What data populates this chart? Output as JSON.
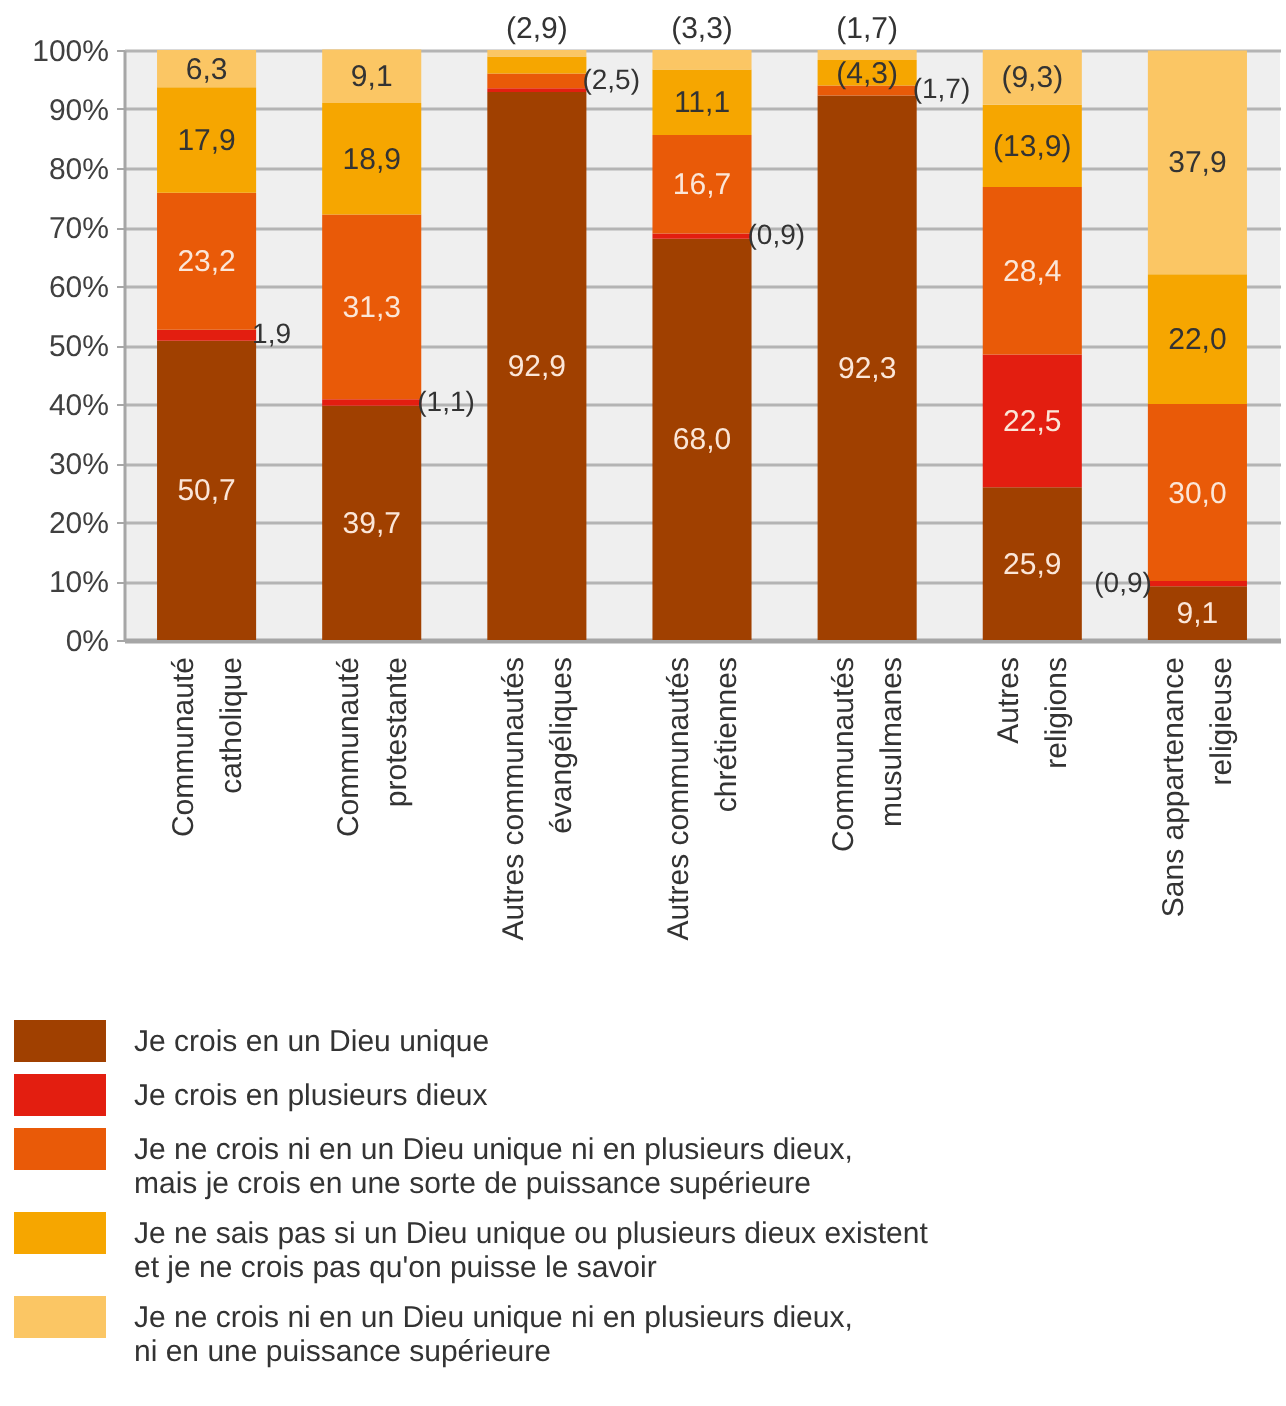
{
  "chart_data": {
    "type": "bar",
    "stacked": true,
    "categories": [
      "Communauté catholique",
      "Communauté protestante",
      "Autres communautés évangéliques",
      "Autres communautés chrétiennes",
      "Communautés musulmanes",
      "Autres religions",
      "Sans appartenance religieuse"
    ],
    "series": [
      {
        "name": "Je crois en un Dieu unique",
        "color": "#a04000",
        "values": [
          50.7,
          39.7,
          92.9,
          68.0,
          92.3,
          25.9,
          9.1
        ],
        "value_labels": [
          "50,7",
          "39,7",
          "92,9",
          "68,0",
          "92,3",
          "25,9",
          "9,1"
        ]
      },
      {
        "name": "Je crois en plusieurs dieux",
        "color": "#e31e10",
        "values": [
          1.9,
          1.1,
          0.6,
          0.9,
          null,
          22.5,
          0.9
        ],
        "value_labels": [
          "1,9",
          "(1,1)",
          null,
          "(0,9)",
          null,
          "22,5",
          "(0,9)"
        ]
      },
      {
        "name": "Je ne crois ni en un Dieu unique ni en plusieurs dieux,\nmais je crois en une sorte de puissance supérieure",
        "color": "#e95a08",
        "values": [
          23.2,
          31.3,
          2.5,
          16.7,
          1.7,
          28.4,
          30.0
        ],
        "value_labels": [
          "23,2",
          "31,3",
          "(2,5)",
          "16,7",
          "(1,7)",
          "28,4",
          "30,0"
        ]
      },
      {
        "name": "Je ne sais pas si un Dieu unique ou plusieurs dieux existent\net je ne crois pas qu'on puisse le savoir",
        "color": "#f6a600",
        "values": [
          17.9,
          18.9,
          2.9,
          11.1,
          4.3,
          13.9,
          22.0
        ],
        "value_labels": [
          "17,9",
          "18,9",
          "(2,9)",
          "11,1",
          "(4,3)",
          "(13,9)",
          "22,0"
        ]
      },
      {
        "name": "Je ne crois ni en un Dieu unique ni en plusieurs dieux,\nni en une puissance supérieure",
        "color": "#fbc664",
        "values": [
          6.3,
          9.1,
          1.1,
          3.3,
          1.7,
          9.3,
          37.9
        ],
        "value_labels": [
          "6,3",
          "9,1",
          null,
          "(3,3)",
          "(1,7)",
          "(9,3)",
          "37,9"
        ]
      }
    ],
    "ylim": [
      0,
      100
    ],
    "yticks": [
      {
        "value": 0,
        "label": "0%"
      },
      {
        "value": 10,
        "label": "10%"
      },
      {
        "value": 20,
        "label": "20%"
      },
      {
        "value": 30,
        "label": "30%"
      },
      {
        "value": 40,
        "label": "40%"
      },
      {
        "value": 50,
        "label": "50%"
      },
      {
        "value": 60,
        "label": "60%"
      },
      {
        "value": 70,
        "label": "70%"
      },
      {
        "value": 80,
        "label": "80%"
      },
      {
        "value": 90,
        "label": "90%"
      },
      {
        "value": 100,
        "label": "100%"
      }
    ],
    "grid": "y",
    "legend": "bottom"
  }
}
